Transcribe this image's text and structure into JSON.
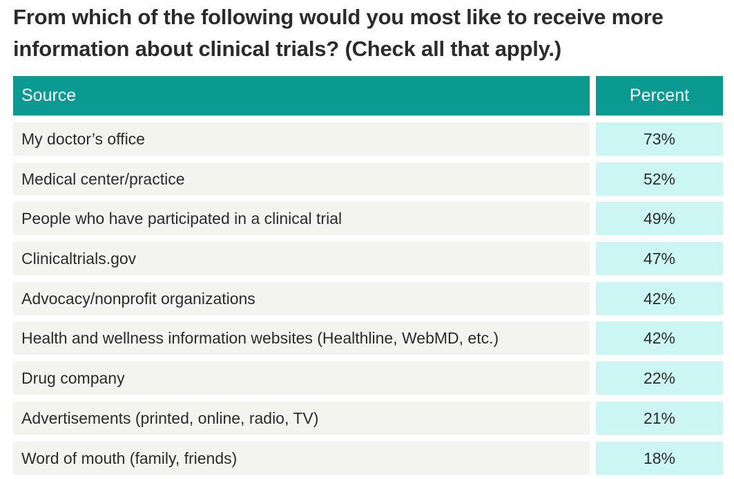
{
  "chart_data": {
    "type": "table",
    "title": "From which of the following would you most like to receive more information about clinical trials? (Check all that apply.)",
    "columns": [
      "Source",
      "Percent"
    ],
    "rows": [
      {
        "source": "My doctor’s office",
        "percent": "73%",
        "value": 73
      },
      {
        "source": "Medical center/practice",
        "percent": "52%",
        "value": 52
      },
      {
        "source": "People who have participated in a clinical trial",
        "percent": "49%",
        "value": 49
      },
      {
        "source": "Clinicaltrials.gov",
        "percent": "47%",
        "value": 47
      },
      {
        "source": "Advocacy/nonprofit organizations",
        "percent": "42%",
        "value": 42
      },
      {
        "source": "Health and wellness information websites (Healthline, WebMD, etc.)",
        "percent": "42%",
        "value": 42
      },
      {
        "source": "Drug company",
        "percent": "22%",
        "value": 22
      },
      {
        "source": "Advertisements (printed, online, radio, TV)",
        "percent": "21%",
        "value": 21
      },
      {
        "source": "Word of mouth (family, friends)",
        "percent": "18%",
        "value": 18
      }
    ]
  },
  "colors": {
    "header_bg": "#0a9a92",
    "source_cell_bg": "#f3f3ef",
    "percent_cell_bg": "#ccf6f3",
    "text": "#2b2b2b"
  }
}
